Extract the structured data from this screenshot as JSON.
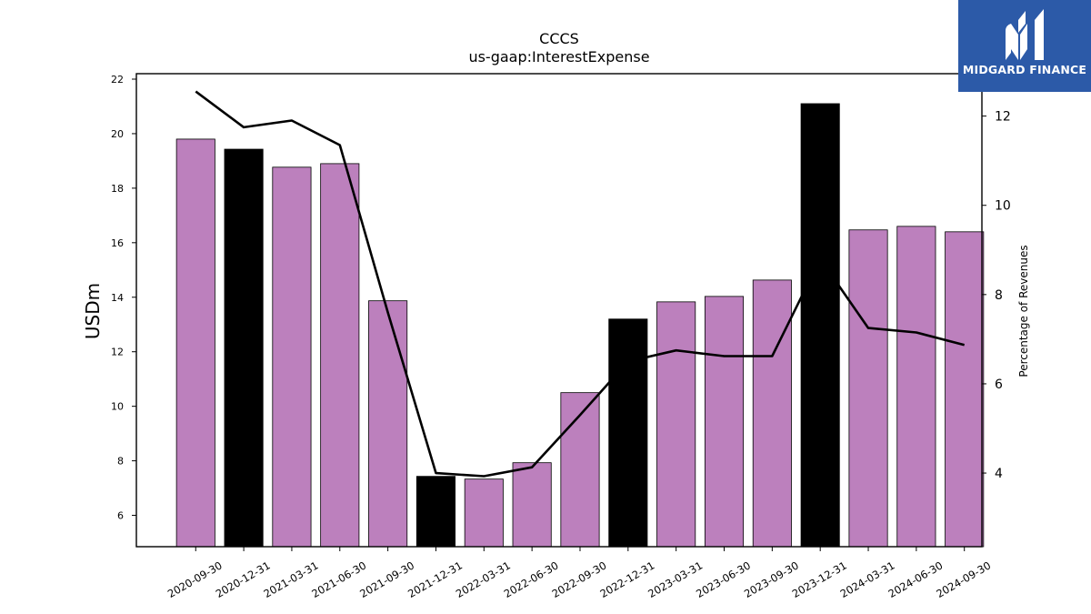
{
  "chart_data": {
    "type": "bar",
    "title": "CCCS",
    "subtitle": "us-gaap:InterestExpense",
    "ylabel": "USDm",
    "y2label": "Percentage of Revenues",
    "ylim": [
      4.85,
      22.2
    ],
    "y2lim": [
      2.35,
      12.95
    ],
    "yticks": [
      6,
      8,
      10,
      12,
      14,
      16,
      18,
      20,
      22
    ],
    "y2ticks": [
      4,
      6,
      8,
      10,
      12
    ],
    "categories": [
      "2020-09-30",
      "2020-12-31",
      "2021-03-31",
      "2021-06-30",
      "2021-09-30",
      "2021-12-31",
      "2022-03-31",
      "2022-06-30",
      "2022-09-30",
      "2022-12-31",
      "2023-03-31",
      "2023-06-30",
      "2023-09-30",
      "2023-12-31",
      "2024-03-31",
      "2024-06-30",
      "2024-09-30"
    ],
    "values": [
      19.8,
      19.43,
      18.77,
      18.9,
      13.87,
      7.43,
      7.33,
      7.93,
      10.5,
      13.2,
      13.83,
      14.03,
      14.63,
      21.1,
      16.47,
      16.6,
      16.4
    ],
    "bar_colors": [
      "#bc80bd",
      "#000000",
      "#bc80bd",
      "#bc80bd",
      "#bc80bd",
      "#000000",
      "#bc80bd",
      "#bc80bd",
      "#bc80bd",
      "#000000",
      "#bc80bd",
      "#bc80bd",
      "#bc80bd",
      "#000000",
      "#bc80bd",
      "#bc80bd",
      "#bc80bd"
    ],
    "line_series": {
      "values": [
        12.55,
        11.75,
        11.9,
        11.35,
        7.6,
        4.0,
        3.93,
        4.13,
        5.3,
        6.5,
        6.75,
        6.62,
        6.62,
        8.8,
        7.25,
        7.15,
        6.87
      ],
      "color": "#000000"
    },
    "grid": false
  },
  "logo": {
    "text": "MIDGARD FINANCE",
    "color": "#2c5aa8"
  }
}
